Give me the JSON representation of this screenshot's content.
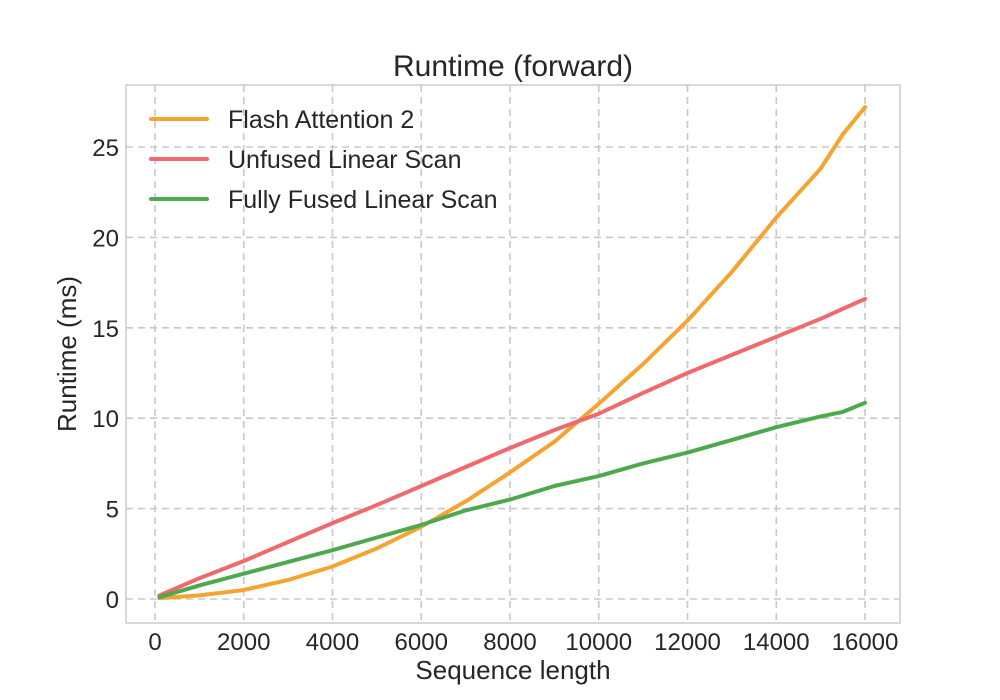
{
  "chart_data": {
    "type": "line",
    "title": "Runtime (forward)",
    "xlabel": "Sequence length",
    "ylabel": "Runtime (ms)",
    "xlim": [
      -700,
      16800
    ],
    "ylim": [
      -1.3,
      28.3
    ],
    "xticks": [
      0,
      2000,
      4000,
      6000,
      8000,
      10000,
      12000,
      14000,
      16000
    ],
    "yticks": [
      0,
      5,
      10,
      15,
      20,
      25
    ],
    "grid": true,
    "legend_position": "upper left",
    "x": [
      100,
      1000,
      2000,
      3000,
      4000,
      5000,
      6000,
      7000,
      8000,
      9000,
      10000,
      11000,
      12000,
      13000,
      14000,
      15000,
      15500,
      16000
    ],
    "series": [
      {
        "name": "Flash Attention 2",
        "color": "#f5a431",
        "values": [
          0.05,
          0.2,
          0.5,
          1.05,
          1.8,
          2.8,
          4.0,
          5.4,
          7.0,
          8.7,
          10.8,
          13.0,
          15.4,
          18.1,
          21.1,
          23.8,
          25.7,
          27.2
        ]
      },
      {
        "name": "Unfused Linear Scan",
        "color": "#f06a6d",
        "values": [
          0.2,
          1.15,
          2.1,
          3.15,
          4.2,
          5.2,
          6.25,
          7.3,
          8.35,
          9.35,
          10.25,
          11.4,
          12.5,
          13.5,
          14.5,
          15.5,
          16.05,
          16.6
        ]
      },
      {
        "name": "Fully Fused Linear Scan",
        "color": "#4ea84e",
        "values": [
          0.1,
          0.75,
          1.4,
          2.05,
          2.7,
          3.4,
          4.1,
          4.9,
          5.5,
          6.25,
          6.8,
          7.5,
          8.1,
          8.8,
          9.5,
          10.1,
          10.35,
          10.85
        ]
      }
    ]
  }
}
